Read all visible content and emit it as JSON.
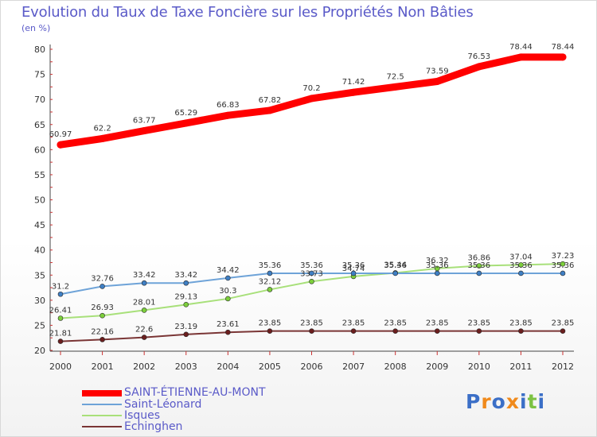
{
  "chart_data": {
    "type": "line",
    "title": "Evolution du Taux de Taxe Foncière sur les Propriétés Non Bâties",
    "ylabel": "(en %)",
    "xlabel": "",
    "ylim": [
      20,
      80
    ],
    "yticks": [
      20,
      25,
      30,
      35,
      40,
      45,
      50,
      55,
      60,
      65,
      70,
      75,
      80
    ],
    "grid": "none",
    "legend_position": "bottom-left",
    "x": [
      "2000",
      "2001",
      "2002",
      "2003",
      "2004",
      "2005",
      "2006",
      "2007",
      "2008",
      "2009",
      "2010",
      "2011",
      "2012"
    ],
    "series": [
      {
        "name": "SAINT-ÉTIENNE-AU-MONT",
        "color": "#ff0000",
        "marker_color": "#ff0000",
        "width": "thick",
        "values": [
          60.97,
          62.2,
          63.77,
          65.29,
          66.83,
          67.82,
          70.2,
          71.42,
          72.5,
          73.59,
          76.53,
          78.44,
          78.44
        ],
        "labels": [
          "60.97",
          "62.2",
          "63.77",
          "65.29",
          "66.83",
          "67.82",
          "70.2",
          "71.42",
          "72.5",
          "73.59",
          "76.53",
          "78.44",
          "78.44"
        ]
      },
      {
        "name": "Saint-Léonard",
        "color": "#6ea3d8",
        "marker_color": "#3f7fc4",
        "width": "thin",
        "values": [
          31.2,
          32.76,
          33.42,
          33.42,
          34.42,
          35.36,
          35.36,
          35.36,
          35.36,
          35.36,
          35.36,
          35.36,
          35.36
        ],
        "labels": [
          "31.2",
          "32.76",
          "33.42",
          "33.42",
          "34.42",
          "35.36",
          "35.36",
          "35.36",
          "35.36",
          "35.36",
          "35.36",
          "35.36",
          "35.36"
        ]
      },
      {
        "name": "Isques",
        "color": "#a8e07a",
        "marker_color": "#7ccf3b",
        "width": "thin",
        "values": [
          26.41,
          26.93,
          28.01,
          29.13,
          30.3,
          32.12,
          33.73,
          34.74,
          35.44,
          36.32,
          36.86,
          37.04,
          37.23
        ],
        "labels": [
          "26.41",
          "26.93",
          "28.01",
          "29.13",
          "30.3",
          "32.12",
          "33.73",
          "34.74",
          "35.44",
          "36.32",
          "36.86",
          "37.04",
          "37.23"
        ]
      },
      {
        "name": "Echinghen",
        "color": "#7a3535",
        "marker_color": "#6b1e1e",
        "width": "thin",
        "values": [
          21.81,
          22.16,
          22.6,
          23.19,
          23.61,
          23.85,
          23.85,
          23.85,
          23.85,
          23.85,
          23.85,
          23.85,
          23.85
        ],
        "labels": [
          "21.81",
          "22.16",
          "22.6",
          "23.19",
          "23.61",
          "23.85",
          "23.85",
          "23.85",
          "23.85",
          "23.85",
          "23.85",
          "23.85",
          "23.85"
        ]
      }
    ]
  },
  "logo": {
    "letters": [
      "P",
      "r",
      "o",
      "x",
      "i",
      "t",
      "i"
    ],
    "colors": [
      "#3b6fc7",
      "#f08a1c",
      "#3b6fc7",
      "#f08a1c",
      "#3b6fc7",
      "#7cc242",
      "#3b6fc7"
    ]
  }
}
